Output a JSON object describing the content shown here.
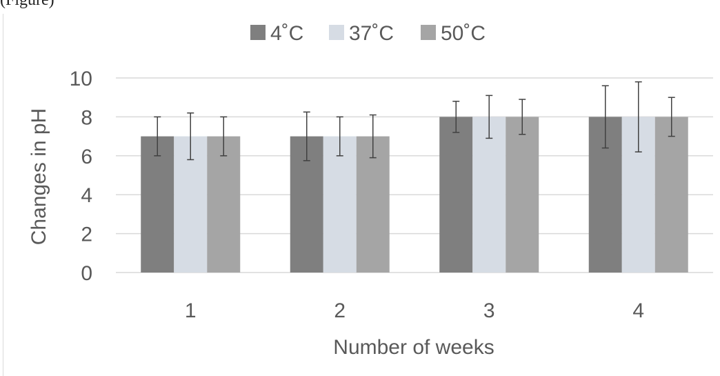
{
  "caption_fragment": "(Figure)",
  "chart_data": {
    "type": "bar",
    "categories": [
      "1",
      "2",
      "3",
      "4"
    ],
    "series": [
      {
        "name": "4˚C",
        "color": "#7f7f7f",
        "values": [
          7,
          7,
          8,
          8
        ],
        "errors": [
          1.0,
          1.25,
          0.8,
          1.6
        ]
      },
      {
        "name": "37˚C",
        "color": "#d6dce4",
        "values": [
          7,
          7,
          8,
          8
        ],
        "errors": [
          1.2,
          1.0,
          1.1,
          1.8
        ]
      },
      {
        "name": "50˚C",
        "color": "#a5a5a5",
        "values": [
          7,
          7,
          8,
          8
        ],
        "errors": [
          1.0,
          1.1,
          0.9,
          1.0
        ]
      }
    ],
    "xlabel": "Number of weeks",
    "ylabel": "Changes in pH",
    "ylim": [
      0,
      10
    ],
    "yticks": [
      "0",
      "2",
      "4",
      "6",
      "8",
      "10"
    ],
    "grid": true,
    "legend_position": "top",
    "gridline_color": "#d9d9d9",
    "error_bar_color": "#404040"
  }
}
